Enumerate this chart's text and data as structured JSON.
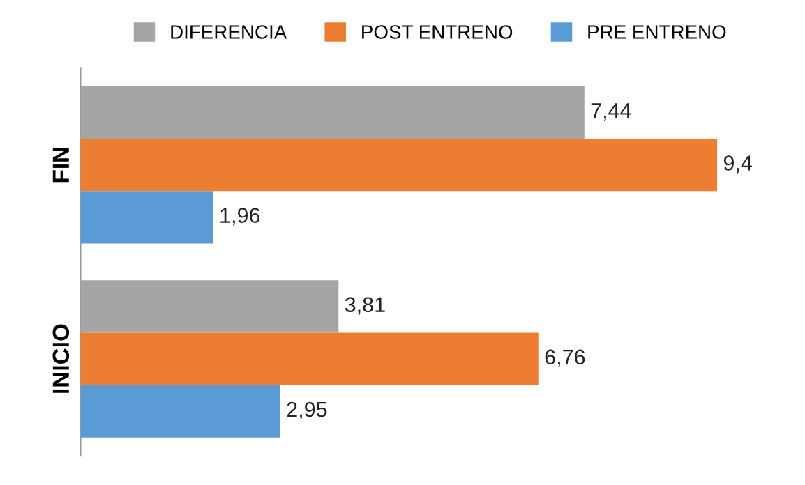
{
  "chart_data": {
    "type": "bar",
    "orientation": "horizontal",
    "categories": [
      "FIN",
      "INICIO"
    ],
    "legend": "top",
    "series": [
      {
        "name": "DIFERENCIA",
        "color": "#a5a5a5",
        "values": [
          7.44,
          3.81
        ],
        "value_labels": [
          "7,44",
          "3,81"
        ]
      },
      {
        "name": "POST ENTRENO",
        "color": "#ed7d31",
        "values": [
          9.4,
          6.76
        ],
        "value_labels": [
          "9,4",
          "6,76"
        ]
      },
      {
        "name": "PRE ENTRENO",
        "color": "#5b9bd5",
        "values": [
          1.96,
          2.95
        ],
        "value_labels": [
          "1,96",
          "2,95"
        ]
      }
    ],
    "grid": false
  }
}
